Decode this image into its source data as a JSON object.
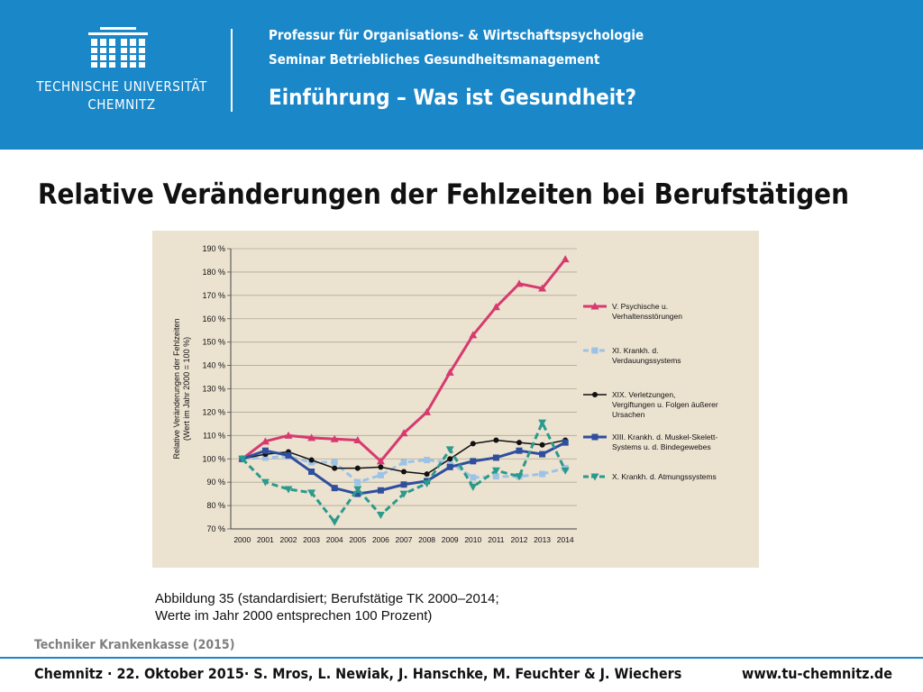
{
  "header": {
    "university_line1": "TECHNISCHE UNIVERSITÄT",
    "university_line2": "CHEMNITZ",
    "line1": "Professur für Organisations- & Wirtschaftspsychologie",
    "line2": "Seminar Betriebliches Gesundheitsmanagement",
    "title": "Einführung – Was ist Gesundheit?"
  },
  "slide": {
    "title": "Relative Veränderungen der Fehlzeiten bei Berufstätigen",
    "caption_line1": "Abbildung 35 (standardisiert; Berufstätige TK 2000–2014;",
    "caption_line2": "Werte im Jahr 2000 entsprechen 100 Prozent)",
    "source": "Techniker Krankenkasse (2015)"
  },
  "footer": {
    "left": "Chemnitz · 22. Oktober 2015· S. Mros, L. Newiak, J. Hanschke, M. Feuchter & J. Wiechers",
    "right": "www.tu-chemnitz.de"
  },
  "colors": {
    "header_blue": "#1a87c9",
    "chart_background": "#ece2d0"
  },
  "chart_data": {
    "type": "line",
    "ylabel_line1": "Relative Veränderungen der Fehlzeiten",
    "ylabel_line2": "(Wert im Jahr 2000 = 100 %)",
    "ylim": [
      70,
      190
    ],
    "yticks": [
      "190 %",
      "180 %",
      "170 %",
      "160 %",
      "150 %",
      "140 %",
      "130 %",
      "120 %",
      "110 %",
      "100 %",
      "90 %",
      "80 %",
      "70 %"
    ],
    "x": [
      "2000",
      "2001",
      "2002",
      "2003",
      "2004",
      "2005",
      "2006",
      "2007",
      "2008",
      "2009",
      "2010",
      "2011",
      "2012",
      "2013",
      "2014"
    ],
    "grid": "horizontal",
    "legend_position": "right",
    "series": [
      {
        "name_line1": "V. Psychische u.",
        "name_line2": "Verhaltensstörungen",
        "color": "#d63a6f",
        "marker": "triangle",
        "dash": "solid",
        "values": [
          100,
          107.5,
          110,
          109,
          108.5,
          108,
          99,
          111,
          120,
          137,
          153,
          165,
          175,
          173,
          185.5
        ]
      },
      {
        "name_line1": "XI. Krankh. d.",
        "name_line2": "Verdauungssystems",
        "color": "#9cc3e6",
        "marker": "square",
        "dash": "dashed",
        "values": [
          100,
          100.5,
          101,
          98.5,
          98.5,
          90,
          93,
          98.5,
          99.5,
          98.5,
          92,
          92.5,
          92.5,
          93.5,
          96
        ]
      },
      {
        "name_line1": "XIX. Verletzungen,",
        "name_line2": "Vergiftungen u. Folgen äußerer",
        "name_line3": "Ursachen",
        "color": "#111111",
        "marker": "circle",
        "dash": "solid",
        "values": [
          100,
          102,
          103,
          99.5,
          96,
          96,
          96.5,
          94.5,
          93.5,
          100,
          106.5,
          108,
          107,
          106,
          108
        ]
      },
      {
        "name_line1": "XIII. Krankh. d. Muskel-Skelett-",
        "name_line2": "Systems u. d. Bindegewebes",
        "color": "#2f4f9d",
        "marker": "square",
        "dash": "solid",
        "values": [
          100,
          103.5,
          101.5,
          94.5,
          87.5,
          85,
          86.5,
          89,
          90.5,
          96.5,
          99,
          100.5,
          103.5,
          102,
          107
        ]
      },
      {
        "name_line1": "X. Krankh. d. Atmungssystems",
        "color": "#2a9a8c",
        "marker": "triangle-down",
        "dash": "dashed",
        "values": [
          100,
          90,
          87,
          85.5,
          73,
          87,
          76,
          85,
          89.5,
          104,
          88,
          95,
          92.5,
          115.5,
          95
        ]
      }
    ]
  }
}
